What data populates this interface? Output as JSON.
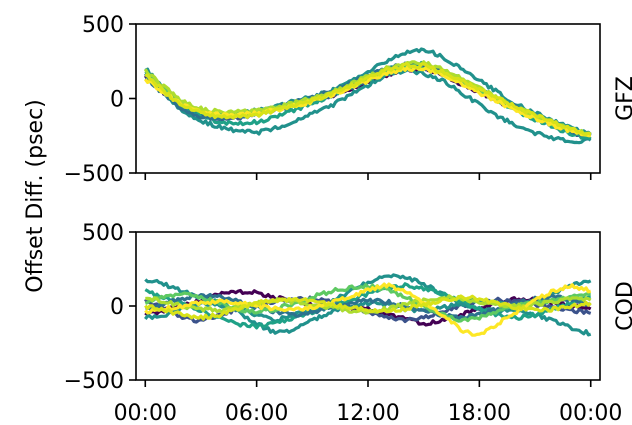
{
  "figure": {
    "ylabel": "Offset Diff. (psec)"
  },
  "chart_data": [
    {
      "type": "line",
      "panel_label": "GFZ",
      "ylim": [
        -500,
        500
      ],
      "yticks": [
        -500,
        0,
        500
      ],
      "ytick_labels": [
        "−500",
        "0",
        "500"
      ],
      "xlim_hours": [
        -0.5,
        24.5
      ],
      "xticks_hours": [
        0,
        6,
        12,
        18,
        24
      ],
      "xtick_labels": [],
      "colormap": "viridis",
      "x_hours": [
        0,
        1,
        2,
        3,
        4,
        5,
        6,
        7,
        8,
        9,
        10,
        11,
        12,
        13,
        14,
        15,
        16,
        17,
        18,
        19,
        20,
        21,
        22,
        23,
        24
      ],
      "series": [
        {
          "color": "#440154",
          "values": [
            150,
            40,
            -50,
            -110,
            -120,
            -110,
            -90,
            -70,
            -40,
            -10,
            20,
            60,
            110,
            160,
            190,
            195,
            160,
            100,
            40,
            -20,
            -70,
            -120,
            -170,
            -220,
            -260
          ]
        },
        {
          "color": "#3b528b",
          "values": [
            170,
            50,
            -60,
            -120,
            -140,
            -130,
            -100,
            -80,
            -50,
            -20,
            20,
            70,
            120,
            170,
            210,
            210,
            170,
            110,
            50,
            -10,
            -70,
            -130,
            -180,
            -230,
            -270
          ]
        },
        {
          "color": "#21918c",
          "values": [
            200,
            70,
            -40,
            -100,
            -110,
            -100,
            -80,
            -50,
            -20,
            10,
            50,
            110,
            180,
            250,
            310,
            330,
            280,
            200,
            120,
            40,
            -40,
            -100,
            -150,
            -200,
            -240
          ]
        },
        {
          "color": "#21918c",
          "values": [
            160,
            30,
            -80,
            -150,
            -190,
            -220,
            -230,
            -200,
            -150,
            -100,
            -50,
            20,
            90,
            160,
            190,
            170,
            120,
            40,
            -40,
            -120,
            -180,
            -230,
            -270,
            -290,
            -280
          ]
        },
        {
          "color": "#1fa187",
          "values": [
            180,
            60,
            -50,
            -120,
            -160,
            -170,
            -160,
            -120,
            -80,
            -30,
            20,
            70,
            130,
            190,
            230,
            230,
            190,
            130,
            60,
            -10,
            -80,
            -140,
            -190,
            -240,
            -270
          ]
        },
        {
          "color": "#2c728e",
          "values": [
            140,
            30,
            -70,
            -120,
            -130,
            -120,
            -100,
            -60,
            -30,
            10,
            50,
            100,
            150,
            200,
            230,
            220,
            180,
            120,
            60,
            0,
            -60,
            -120,
            -170,
            -220,
            -250
          ]
        },
        {
          "color": "#5ec962",
          "values": [
            170,
            60,
            -30,
            -90,
            -110,
            -110,
            -100,
            -70,
            -40,
            -10,
            30,
            80,
            130,
            180,
            210,
            210,
            170,
            110,
            50,
            -10,
            -70,
            -120,
            -170,
            -210,
            -240
          ]
        },
        {
          "color": "#addc30",
          "values": [
            190,
            80,
            -20,
            -70,
            -90,
            -90,
            -80,
            -60,
            -30,
            0,
            40,
            90,
            150,
            200,
            240,
            240,
            200,
            140,
            70,
            0,
            -60,
            -120,
            -170,
            -210,
            -240
          ]
        },
        {
          "color": "#fde725",
          "values": [
            130,
            40,
            -40,
            -90,
            -110,
            -110,
            -100,
            -80,
            -50,
            -20,
            20,
            70,
            120,
            170,
            200,
            200,
            160,
            100,
            40,
            -20,
            -80,
            -130,
            -180,
            -220,
            -250
          ]
        },
        {
          "color": "#d8e219",
          "values": [
            160,
            50,
            -50,
            -100,
            -120,
            -120,
            -110,
            -80,
            -50,
            -10,
            30,
            80,
            140,
            190,
            220,
            220,
            180,
            120,
            60,
            0,
            -60,
            -110,
            -160,
            -210,
            -240
          ]
        }
      ]
    },
    {
      "type": "line",
      "panel_label": "COD",
      "ylim": [
        -500,
        500
      ],
      "yticks": [
        -500,
        0,
        500
      ],
      "ytick_labels": [
        "−500",
        "0",
        "500"
      ],
      "xlim_hours": [
        -0.5,
        24.5
      ],
      "xticks_hours": [
        0,
        6,
        12,
        18,
        24
      ],
      "xtick_labels": [
        "00:00",
        "06:00",
        "12:00",
        "18:00",
        "00:00"
      ],
      "colormap": "viridis",
      "x_hours": [
        0,
        1,
        2,
        3,
        4,
        5,
        6,
        7,
        8,
        9,
        10,
        11,
        12,
        13,
        14,
        15,
        16,
        17,
        18,
        19,
        20,
        21,
        22,
        23,
        24
      ],
      "series": [
        {
          "color": "#440154",
          "values": [
            -60,
            -30,
            0,
            40,
            80,
            100,
            90,
            60,
            30,
            10,
            0,
            -10,
            -20,
            -50,
            -90,
            -120,
            -100,
            -60,
            -20,
            20,
            50,
            40,
            20,
            0,
            -20
          ]
        },
        {
          "color": "#3b528b",
          "values": [
            40,
            -20,
            -80,
            -100,
            -60,
            -20,
            10,
            30,
            40,
            50,
            30,
            0,
            -40,
            -80,
            -100,
            -80,
            -40,
            0,
            30,
            40,
            30,
            10,
            -10,
            -30,
            -50
          ]
        },
        {
          "color": "#21918c",
          "values": [
            180,
            150,
            100,
            60,
            20,
            -20,
            -60,
            -100,
            -60,
            -20,
            20,
            100,
            160,
            200,
            200,
            150,
            80,
            20,
            -20,
            -40,
            -20,
            20,
            80,
            140,
            170
          ]
        },
        {
          "color": "#21918c",
          "values": [
            -80,
            -60,
            -20,
            20,
            10,
            -40,
            -120,
            -180,
            -160,
            -100,
            -40,
            0,
            20,
            10,
            -20,
            -30,
            -10,
            20,
            40,
            20,
            -20,
            -60,
            -100,
            -150,
            -190
          ]
        },
        {
          "color": "#1fa187",
          "values": [
            100,
            60,
            20,
            -30,
            -80,
            -120,
            -140,
            -120,
            -80,
            -40,
            0,
            40,
            80,
            120,
            140,
            120,
            80,
            30,
            -20,
            -60,
            -80,
            -60,
            -20,
            20,
            60
          ]
        },
        {
          "color": "#2c728e",
          "values": [
            -20,
            20,
            50,
            70,
            60,
            30,
            -10,
            -40,
            -60,
            -40,
            -10,
            20,
            40,
            30,
            0,
            -30,
            -60,
            -80,
            -60,
            -20,
            20,
            50,
            60,
            40,
            10
          ]
        },
        {
          "color": "#5ec962",
          "values": [
            20,
            60,
            80,
            60,
            20,
            -20,
            -40,
            -20,
            20,
            60,
            100,
            120,
            140,
            110,
            60,
            0,
            -60,
            -100,
            -80,
            -40,
            0,
            20,
            40,
            60,
            80
          ]
        },
        {
          "color": "#addc30",
          "values": [
            60,
            30,
            0,
            -20,
            -30,
            -10,
            20,
            40,
            30,
            10,
            -10,
            -30,
            -40,
            -20,
            10,
            40,
            60,
            50,
            30,
            10,
            0,
            10,
            30,
            50,
            40
          ]
        },
        {
          "color": "#fde725",
          "values": [
            -40,
            -20,
            0,
            20,
            30,
            20,
            0,
            -20,
            -30,
            -10,
            20,
            60,
            110,
            140,
            100,
            20,
            -60,
            -160,
            -200,
            -120,
            -40,
            40,
            100,
            140,
            100
          ]
        },
        {
          "color": "#d8e219",
          "values": [
            0,
            -30,
            -60,
            -80,
            -60,
            -20,
            20,
            40,
            50,
            30,
            10,
            -10,
            -30,
            -40,
            -20,
            10,
            40,
            60,
            50,
            20,
            -10,
            -30,
            -20,
            0,
            20
          ]
        }
      ]
    }
  ]
}
